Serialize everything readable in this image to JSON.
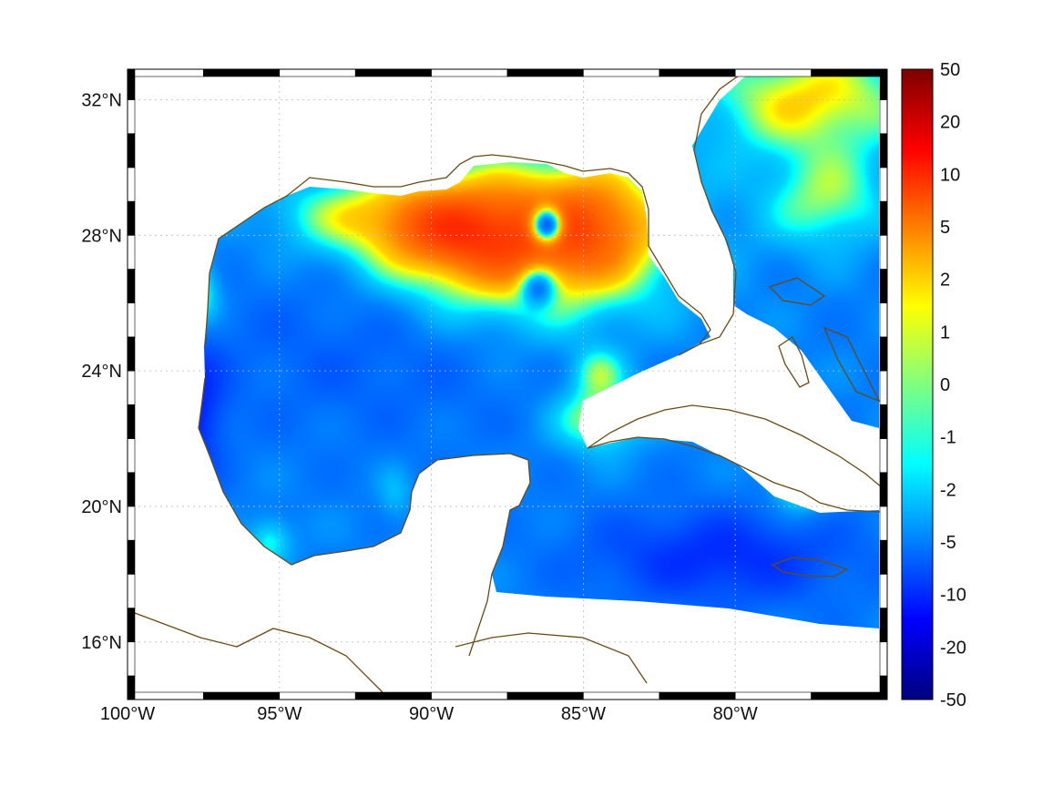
{
  "map": {
    "projection": "lon-lat",
    "lon_range": [
      -100,
      -75
    ],
    "lat_range": [
      14.3,
      32.9
    ],
    "lon_ticks": [
      {
        "value": -100,
        "label": "100°W"
      },
      {
        "value": -95,
        "label": "95°W"
      },
      {
        "value": -90,
        "label": "90°W"
      },
      {
        "value": -85,
        "label": "85°W"
      },
      {
        "value": -80,
        "label": "80°W"
      }
    ],
    "lat_ticks": [
      {
        "value": 32,
        "label": "32°N"
      },
      {
        "value": 28,
        "label": "28°N"
      },
      {
        "value": 24,
        "label": "24°N"
      },
      {
        "value": 20,
        "label": "20°N"
      },
      {
        "value": 16,
        "label": "16°N"
      }
    ],
    "grid": true,
    "frame": "black-white-alternating",
    "coastline_color": "#6b4a12",
    "land_color": "#ffffff"
  },
  "colorbar": {
    "position": "right",
    "colormap": "jet",
    "tick_labels": [
      "50",
      "20",
      "10",
      "5",
      "2",
      "1",
      "0",
      "-1",
      "-2",
      "-5",
      "-10",
      "-20",
      "-50"
    ]
  },
  "field": {
    "background_level": -5,
    "blobs": [
      {
        "lon": -87.0,
        "lat": 27.8,
        "sx": 3.2,
        "sy": 1.6,
        "amp": 11
      },
      {
        "lon": -89.5,
        "lat": 28.2,
        "sx": 1.8,
        "sy": 1.0,
        "amp": 6
      },
      {
        "lon": -84.5,
        "lat": 28.5,
        "sx": 1.5,
        "sy": 1.2,
        "amp": 5
      },
      {
        "lon": -92.8,
        "lat": 28.6,
        "sx": 2.0,
        "sy": 0.8,
        "amp": 4
      },
      {
        "lon": -98.2,
        "lat": 26.3,
        "sx": 0.7,
        "sy": 0.7,
        "amp": 10
      },
      {
        "lon": -86.2,
        "lat": 28.3,
        "sx": 0.35,
        "sy": 0.35,
        "amp": -16
      },
      {
        "lon": -86.5,
        "lat": 26.5,
        "sx": 0.4,
        "sy": 0.4,
        "amp": -8
      },
      {
        "lon": -77.5,
        "lat": 32.0,
        "sx": 2.5,
        "sy": 1.2,
        "amp": 7
      },
      {
        "lon": -77.0,
        "lat": 29.0,
        "sx": 1.4,
        "sy": 1.0,
        "amp": 5
      },
      {
        "lon": -84.5,
        "lat": 22.6,
        "sx": 1.0,
        "sy": 0.7,
        "amp": 6
      },
      {
        "lon": -84.5,
        "lat": 24.0,
        "sx": 0.6,
        "sy": 0.5,
        "amp": 4
      },
      {
        "lon": -77.8,
        "lat": 20.8,
        "sx": 0.7,
        "sy": 0.7,
        "amp": 6
      },
      {
        "lon": -95.3,
        "lat": 19.0,
        "sx": 0.5,
        "sy": 0.5,
        "amp": 4
      },
      {
        "lon": -91.2,
        "lat": 20.3,
        "sx": 0.4,
        "sy": 0.6,
        "amp": 2
      },
      {
        "lon": -98.0,
        "lat": 22.8,
        "sx": 0.8,
        "sy": 1.5,
        "amp": -6
      },
      {
        "lon": -80.5,
        "lat": 18.5,
        "sx": 3.0,
        "sy": 1.0,
        "amp": -5
      },
      {
        "lon": -92.0,
        "lat": 24.8,
        "sx": 4.0,
        "sy": 2.0,
        "amp": -2
      }
    ]
  }
}
